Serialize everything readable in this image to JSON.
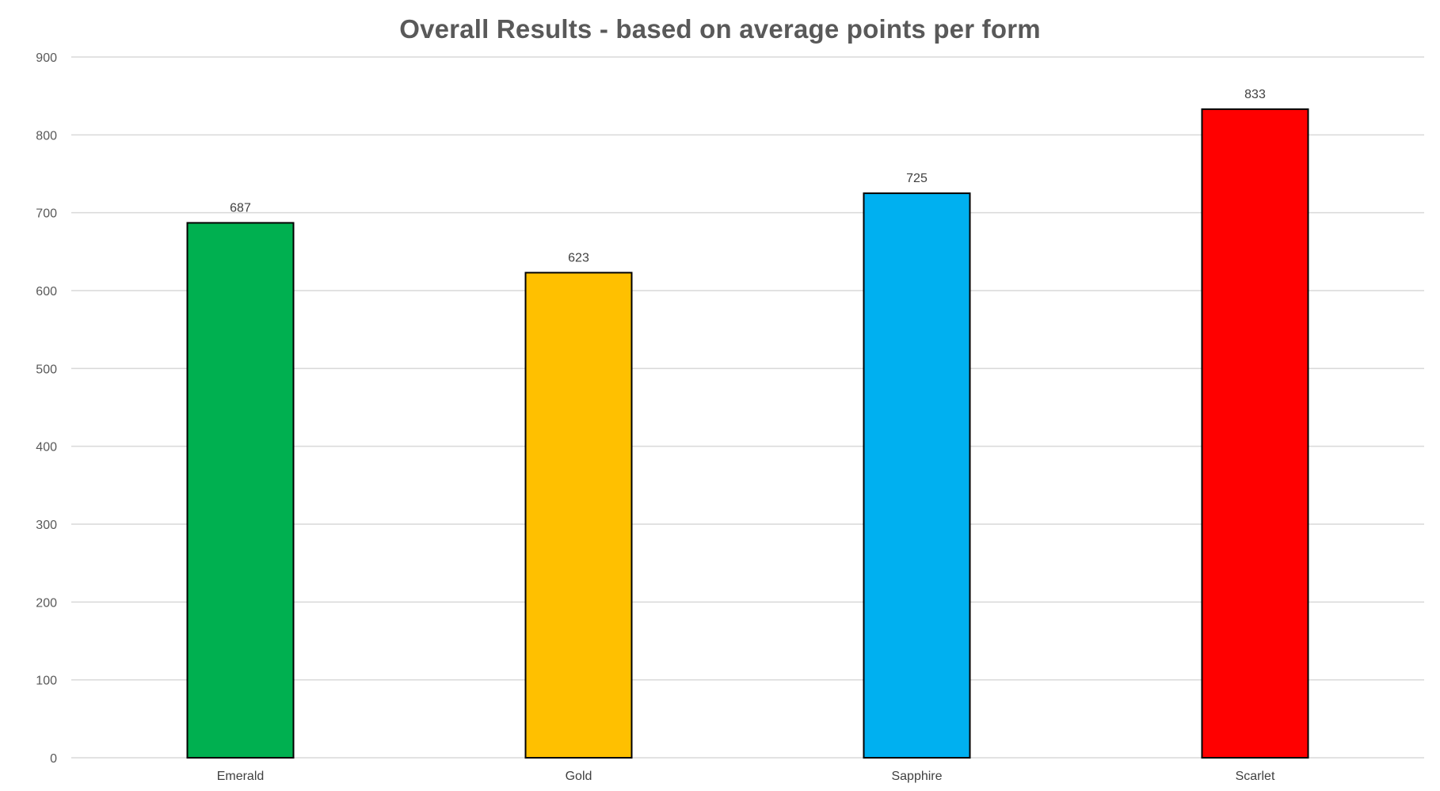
{
  "chart_data": {
    "type": "bar",
    "title": "Overall Results - based on average points per form",
    "xlabel": "",
    "ylabel": "",
    "categories": [
      "Emerald",
      "Gold",
      "Sapphire",
      "Scarlet"
    ],
    "values": [
      687,
      623,
      725,
      833
    ],
    "data_labels": [
      "687",
      "623",
      "725",
      "833"
    ],
    "bar_colors": [
      "#00B050",
      "#FFC000",
      "#00B0F0",
      "#FF0000"
    ],
    "bar_outline_color": "#000000",
    "ylim": [
      0,
      900
    ],
    "yticks": [
      0,
      100,
      200,
      300,
      400,
      500,
      600,
      700,
      800,
      900
    ],
    "grid": true,
    "legend": "none"
  }
}
